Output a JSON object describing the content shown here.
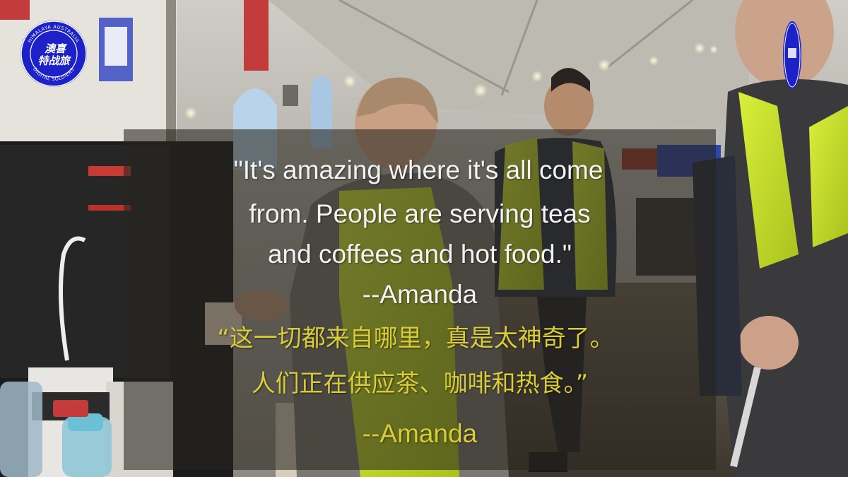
{
  "logo": {
    "ring_top": "HIMALAYA AUSTRALIA",
    "ring_bottom": "DIGITAL SOLDIERS",
    "center_line1": "澳喜",
    "center_line2": "特战旅",
    "color": "#1d22c8"
  },
  "caption": {
    "en_line1": "\"It's amazing where it's all come",
    "en_line2": "from. People are serving teas",
    "en_line3": "and coffees and hot food.\"",
    "en_attribution": "--Amanda",
    "zh_line1": "“这一切都来自哪里，真是太神奇了。",
    "zh_line2": "人们正在供应茶、咖啡和热食。”",
    "zh_attribution": "--Amanda",
    "en_color": "#f2f2f2",
    "zh_color": "#d8cc38"
  }
}
